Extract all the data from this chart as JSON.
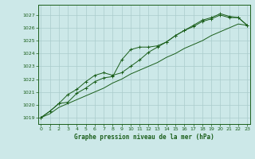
{
  "xlabel": "Graphe pression niveau de la mer (hPa)",
  "ylim": [
    1018.5,
    1027.8
  ],
  "xlim": [
    -0.3,
    23.3
  ],
  "yticks": [
    1019,
    1020,
    1021,
    1022,
    1023,
    1024,
    1025,
    1026,
    1027
  ],
  "xticks": [
    0,
    1,
    2,
    3,
    4,
    5,
    6,
    7,
    8,
    9,
    10,
    11,
    12,
    13,
    14,
    15,
    16,
    17,
    18,
    19,
    20,
    21,
    22,
    23
  ],
  "background_color": "#cce8e8",
  "grid_color": "#aacccc",
  "line_color": "#1a5e1a",
  "line1_x": [
    0,
    1,
    2,
    3,
    4,
    5,
    6,
    7,
    8,
    9,
    10,
    11,
    12,
    13,
    14,
    15,
    16,
    17,
    18,
    19,
    20,
    21,
    22,
    23
  ],
  "line1_y": [
    1019.0,
    1019.3,
    1019.8,
    1020.1,
    1020.4,
    1020.7,
    1021.0,
    1021.3,
    1021.7,
    1022.0,
    1022.4,
    1022.7,
    1023.0,
    1023.3,
    1023.7,
    1024.0,
    1024.4,
    1024.7,
    1025.0,
    1025.4,
    1025.7,
    1026.0,
    1026.3,
    1026.2
  ],
  "line2_x": [
    0,
    1,
    2,
    3,
    4,
    5,
    6,
    7,
    8,
    9,
    10,
    11,
    12,
    13,
    14,
    15,
    16,
    17,
    18,
    19,
    20,
    21,
    22,
    23
  ],
  "line2_y": [
    1019.0,
    1019.5,
    1020.1,
    1020.2,
    1020.9,
    1021.3,
    1021.8,
    1022.1,
    1022.2,
    1023.5,
    1024.3,
    1024.5,
    1024.5,
    1024.6,
    1024.9,
    1025.4,
    1025.8,
    1026.1,
    1026.5,
    1026.7,
    1027.0,
    1026.8,
    1026.8,
    1026.2
  ],
  "line3_x": [
    0,
    1,
    2,
    3,
    4,
    5,
    6,
    7,
    8,
    9,
    10,
    11,
    12,
    13,
    14,
    15,
    16,
    17,
    18,
    19,
    20,
    21,
    22,
    23
  ],
  "line3_y": [
    1019.0,
    1019.5,
    1020.1,
    1020.8,
    1021.2,
    1021.8,
    1022.3,
    1022.5,
    1022.3,
    1022.5,
    1023.0,
    1023.5,
    1024.1,
    1024.5,
    1024.9,
    1025.4,
    1025.8,
    1026.2,
    1026.6,
    1026.8,
    1027.1,
    1026.9,
    1026.8,
    1026.2
  ]
}
